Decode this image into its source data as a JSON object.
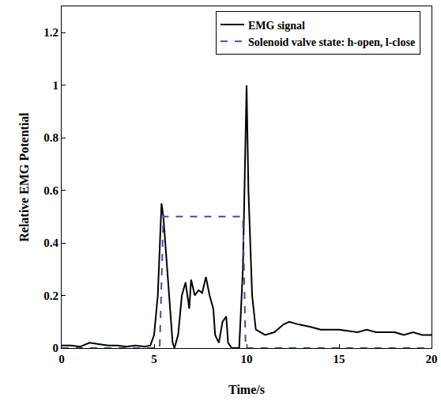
{
  "chart_data": {
    "type": "line",
    "x_label": "Time/s",
    "y_label": "Relative EMG Potential",
    "xlim": [
      0,
      20
    ],
    "xticks": [
      0,
      5,
      10,
      15,
      20
    ],
    "ylim": [
      0,
      1.3
    ],
    "yticks": [
      0,
      0.2,
      0.4,
      0.6,
      0.8,
      1,
      1.2
    ],
    "grid": false,
    "legend": "upper right",
    "series": [
      {
        "name": "EMG signal",
        "color": "#000000",
        "line_style": "solid",
        "x": [
          0,
          0.5,
          1,
          1.5,
          2,
          2.5,
          3,
          3.5,
          4,
          4.5,
          4.8,
          5.0,
          5.2,
          5.4,
          5.5,
          5.7,
          5.9,
          6.0,
          6.1,
          6.3,
          6.5,
          6.7,
          6.9,
          7.0,
          7.2,
          7.4,
          7.6,
          7.8,
          8.0,
          8.2,
          8.3,
          8.5,
          8.7,
          8.9,
          9.0,
          9.2,
          9.6,
          9.8,
          10.0,
          10.1,
          10.3,
          10.5,
          11,
          11.5,
          12,
          12.3,
          12.8,
          13.5,
          14,
          15,
          16,
          16.5,
          17,
          18,
          18.5,
          19,
          19.5,
          20
        ],
        "values": [
          0.01,
          0.01,
          0.005,
          0.02,
          0.015,
          0.01,
          0.01,
          0.005,
          0.01,
          0.005,
          0.01,
          0.05,
          0.2,
          0.55,
          0.5,
          0.3,
          0.1,
          0.02,
          0,
          0.05,
          0.2,
          0.25,
          0.15,
          0.26,
          0.2,
          0.22,
          0.21,
          0.27,
          0.2,
          0.15,
          0.05,
          0.02,
          0.1,
          0.12,
          0.02,
          0,
          0,
          0.3,
          1.0,
          0.6,
          0.2,
          0.07,
          0.05,
          0.06,
          0.09,
          0.1,
          0.09,
          0.08,
          0.07,
          0.07,
          0.06,
          0.07,
          0.06,
          0.06,
          0.05,
          0.06,
          0.05,
          0.05
        ]
      },
      {
        "name": "Solenoid valve state: h-open, l-close",
        "color": "#3b4fb0",
        "line_style": "dashed",
        "x": [
          0,
          5.3,
          5.5,
          9.8,
          9.95,
          20
        ],
        "values": [
          0,
          0,
          0.5,
          0.5,
          0,
          0
        ]
      }
    ]
  }
}
